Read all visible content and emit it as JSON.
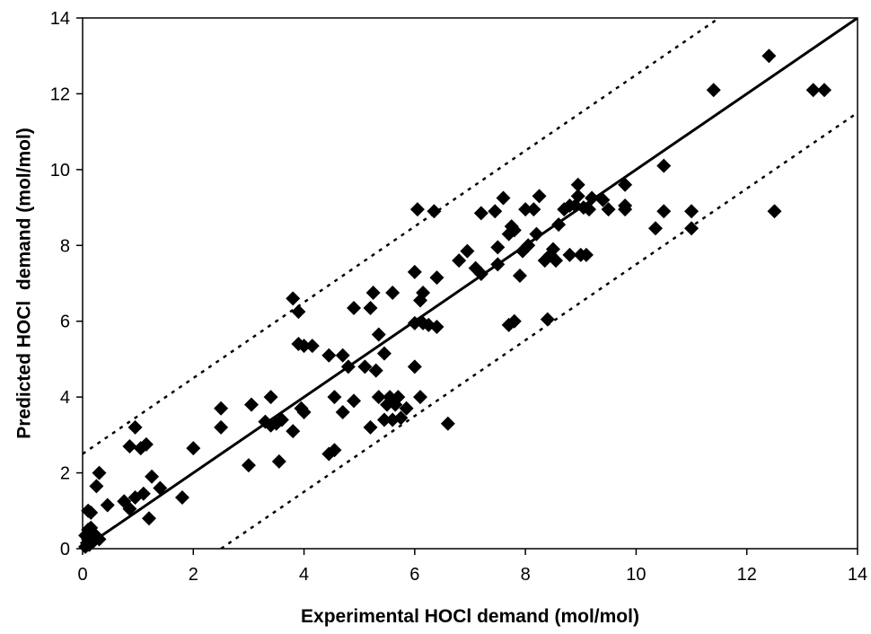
{
  "chart_data": {
    "type": "scatter",
    "title": "",
    "xlabel": "Experimental HOCl demand (mol/mol)",
    "ylabel": "Predicted HOCl  demand (mol/mol)",
    "xlim": [
      0,
      14
    ],
    "ylim": [
      0,
      14
    ],
    "xticks": [
      0,
      2,
      4,
      6,
      8,
      10,
      12,
      14
    ],
    "yticks": [
      0,
      2,
      4,
      6,
      8,
      10,
      12,
      14
    ],
    "grid": false,
    "legend": "none",
    "marker": "diamond",
    "colors": {
      "marker": "#000000",
      "line": "#000000",
      "background": "#ffffff"
    },
    "lines": [
      {
        "style": "solid",
        "x": [
          0,
          14
        ],
        "y": [
          0,
          14
        ]
      },
      {
        "style": "dotted",
        "x": [
          0,
          11.8
        ],
        "y": [
          2.5,
          14.3
        ]
      },
      {
        "style": "dotted",
        "x": [
          2.5,
          14
        ],
        "y": [
          0,
          11.5
        ]
      }
    ],
    "points": [
      [
        0.05,
        0.05
      ],
      [
        0.08,
        0.15
      ],
      [
        0.1,
        0.25
      ],
      [
        0.12,
        0.1
      ],
      [
        0.15,
        0.3
      ],
      [
        0.05,
        0.35
      ],
      [
        0.2,
        0.2
      ],
      [
        0.1,
        0.5
      ],
      [
        0.15,
        0.55
      ],
      [
        0.2,
        0.4
      ],
      [
        0.25,
        0.3
      ],
      [
        0.3,
        0.25
      ],
      [
        0.1,
        1.0
      ],
      [
        0.15,
        0.95
      ],
      [
        0.25,
        1.65
      ],
      [
        0.3,
        2.0
      ],
      [
        0.45,
        1.15
      ],
      [
        0.75,
        1.25
      ],
      [
        0.85,
        1.05
      ],
      [
        0.85,
        2.7
      ],
      [
        0.95,
        1.35
      ],
      [
        0.95,
        3.2
      ],
      [
        1.05,
        2.65
      ],
      [
        1.1,
        1.45
      ],
      [
        1.15,
        2.75
      ],
      [
        1.2,
        0.8
      ],
      [
        1.25,
        1.9
      ],
      [
        1.4,
        1.6
      ],
      [
        1.8,
        1.35
      ],
      [
        2.0,
        2.65
      ],
      [
        2.5,
        3.2
      ],
      [
        2.5,
        3.7
      ],
      [
        3.0,
        2.2
      ],
      [
        3.05,
        3.8
      ],
      [
        3.3,
        3.35
      ],
      [
        3.4,
        3.25
      ],
      [
        3.4,
        4.0
      ],
      [
        3.5,
        3.3
      ],
      [
        3.55,
        2.3
      ],
      [
        3.6,
        3.4
      ],
      [
        3.8,
        3.1
      ],
      [
        3.8,
        6.6
      ],
      [
        3.9,
        5.4
      ],
      [
        3.9,
        6.25
      ],
      [
        3.95,
        3.7
      ],
      [
        4.0,
        3.6
      ],
      [
        4.0,
        5.35
      ],
      [
        4.15,
        5.35
      ],
      [
        4.45,
        2.5
      ],
      [
        4.45,
        5.1
      ],
      [
        4.55,
        2.6
      ],
      [
        4.55,
        4.0
      ],
      [
        4.7,
        3.6
      ],
      [
        4.7,
        5.1
      ],
      [
        4.8,
        4.8
      ],
      [
        4.9,
        3.9
      ],
      [
        4.9,
        6.35
      ],
      [
        5.1,
        4.8
      ],
      [
        5.2,
        3.2
      ],
      [
        5.2,
        6.35
      ],
      [
        5.25,
        6.75
      ],
      [
        5.3,
        4.7
      ],
      [
        5.35,
        4.0
      ],
      [
        5.35,
        5.65
      ],
      [
        5.45,
        3.4
      ],
      [
        5.45,
        5.15
      ],
      [
        5.5,
        3.8
      ],
      [
        5.55,
        4.0
      ],
      [
        5.6,
        3.4
      ],
      [
        5.6,
        6.75
      ],
      [
        5.65,
        3.8
      ],
      [
        5.7,
        4.0
      ],
      [
        5.75,
        3.45
      ],
      [
        5.85,
        3.7
      ],
      [
        6.0,
        4.8
      ],
      [
        6.0,
        5.95
      ],
      [
        6.0,
        7.3
      ],
      [
        6.05,
        8.95
      ],
      [
        6.1,
        4.0
      ],
      [
        6.1,
        6.55
      ],
      [
        6.15,
        6.75
      ],
      [
        6.15,
        5.95
      ],
      [
        6.25,
        5.9
      ],
      [
        6.35,
        8.9
      ],
      [
        6.4,
        5.85
      ],
      [
        6.4,
        7.15
      ],
      [
        6.6,
        3.3
      ],
      [
        6.8,
        7.6
      ],
      [
        6.95,
        7.85
      ],
      [
        7.1,
        7.4
      ],
      [
        7.2,
        7.25
      ],
      [
        7.2,
        8.85
      ],
      [
        7.45,
        8.9
      ],
      [
        7.5,
        7.95
      ],
      [
        7.5,
        7.5
      ],
      [
        7.6,
        9.25
      ],
      [
        7.7,
        5.9
      ],
      [
        7.7,
        8.3
      ],
      [
        7.75,
        8.5
      ],
      [
        7.8,
        8.4
      ],
      [
        7.8,
        6.0
      ],
      [
        7.9,
        7.2
      ],
      [
        7.95,
        7.85
      ],
      [
        8.0,
        8.95
      ],
      [
        8.05,
        8.0
      ],
      [
        8.15,
        8.95
      ],
      [
        8.2,
        8.3
      ],
      [
        8.25,
        9.3
      ],
      [
        8.35,
        7.6
      ],
      [
        8.4,
        6.05
      ],
      [
        8.45,
        7.75
      ],
      [
        8.5,
        7.9
      ],
      [
        8.55,
        7.6
      ],
      [
        8.6,
        8.55
      ],
      [
        8.7,
        8.95
      ],
      [
        8.8,
        7.75
      ],
      [
        8.8,
        9.05
      ],
      [
        8.9,
        9.05
      ],
      [
        8.95,
        9.3
      ],
      [
        8.95,
        9.6
      ],
      [
        9.0,
        7.75
      ],
      [
        9.05,
        9.0
      ],
      [
        9.1,
        7.75
      ],
      [
        9.15,
        8.95
      ],
      [
        9.2,
        9.25
      ],
      [
        9.4,
        9.2
      ],
      [
        9.5,
        8.95
      ],
      [
        9.8,
        8.95
      ],
      [
        9.8,
        9.05
      ],
      [
        9.8,
        9.6
      ],
      [
        10.35,
        8.45
      ],
      [
        10.5,
        8.9
      ],
      [
        10.5,
        10.1
      ],
      [
        11.0,
        8.45
      ],
      [
        11.0,
        8.9
      ],
      [
        11.4,
        12.1
      ],
      [
        12.4,
        13.0
      ],
      [
        12.5,
        8.9
      ],
      [
        13.2,
        12.1
      ],
      [
        13.4,
        12.1
      ]
    ]
  }
}
